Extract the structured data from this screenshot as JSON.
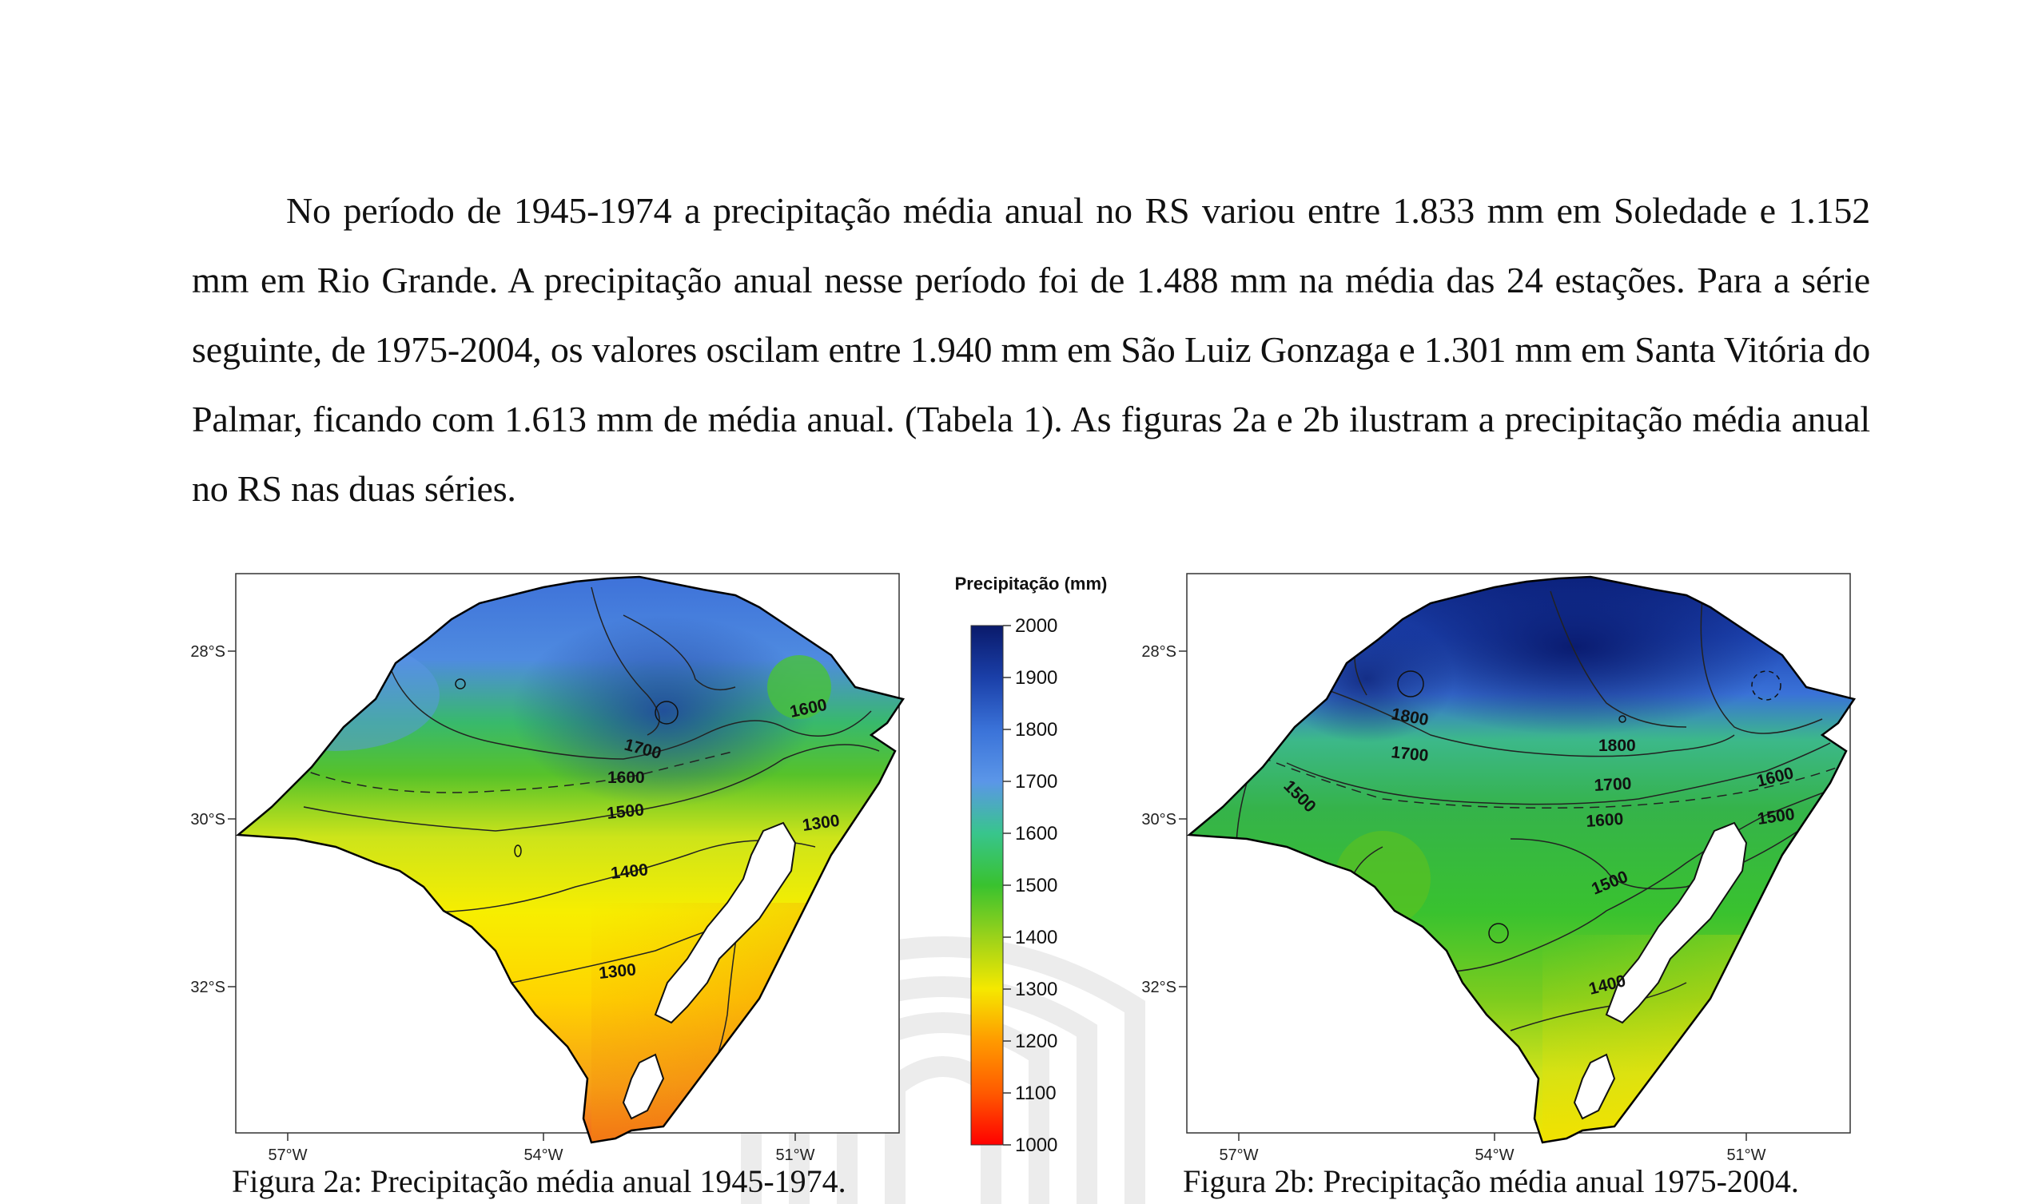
{
  "paragraph": "No período de 1945-1974 a precipitação média anual no RS variou entre 1.833 mm em Soledade e 1.152 mm em Rio Grande. A precipitação anual nesse período foi de 1.488 mm na média das 24 estações. Para a série seguinte, de 1975-2004, os valores oscilam entre 1.940 mm em São Luiz Gonzaga e 1.301 mm em Santa Vitória do Palmar, ficando com 1.613 mm de média anual. (Tabela 1). As figuras 2a e 2b ilustram a precipitação média anual no RS nas duas séries.",
  "figures": [
    {
      "caption": "Figura 2a: Precipitação média anual 1945-1974.",
      "lat_labels": [
        "28°S",
        "30°S",
        "32°S"
      ],
      "lon_labels": [
        "57°W",
        "54°W",
        "51°W"
      ],
      "contour_labels": [
        "1700",
        "1600",
        "1600",
        "1500",
        "1400",
        "1300",
        "1300"
      ],
      "colors": {
        "north": "#1d3f9e",
        "mid_north": "#4f8be0",
        "mid": "#39b54a",
        "south": "#ffe300",
        "coast": "#f26a1b"
      }
    },
    {
      "caption": "Figura 2b: Precipitação média anual 1975-2004.",
      "lat_labels": [
        "28°S",
        "30°S",
        "32°S"
      ],
      "lon_labels": [
        "57°W",
        "54°W",
        "51°W"
      ],
      "contour_labels": [
        "1800",
        "1800",
        "1700",
        "1500",
        "1700",
        "1600",
        "1600",
        "1500",
        "1500",
        "1400"
      ],
      "colors": {
        "north": "#0a1f7a",
        "mid_north": "#2c60d0",
        "mid": "#35b34a",
        "south": "#d8e61a",
        "coast": "#ffe300"
      }
    }
  ],
  "legend": {
    "title": "Precipitação (mm)",
    "ticks": [
      "2000",
      "1900",
      "1800",
      "1700",
      "1600",
      "1500",
      "1400",
      "1300",
      "1200",
      "1100",
      "1000"
    ],
    "colors": [
      "#0a1a6b",
      "#1a3fa8",
      "#3a72d8",
      "#5b96e8",
      "#38c58c",
      "#39c22f",
      "#9bd21a",
      "#f5e800",
      "#ff9a00",
      "#ff5a00",
      "#ff0000"
    ]
  }
}
